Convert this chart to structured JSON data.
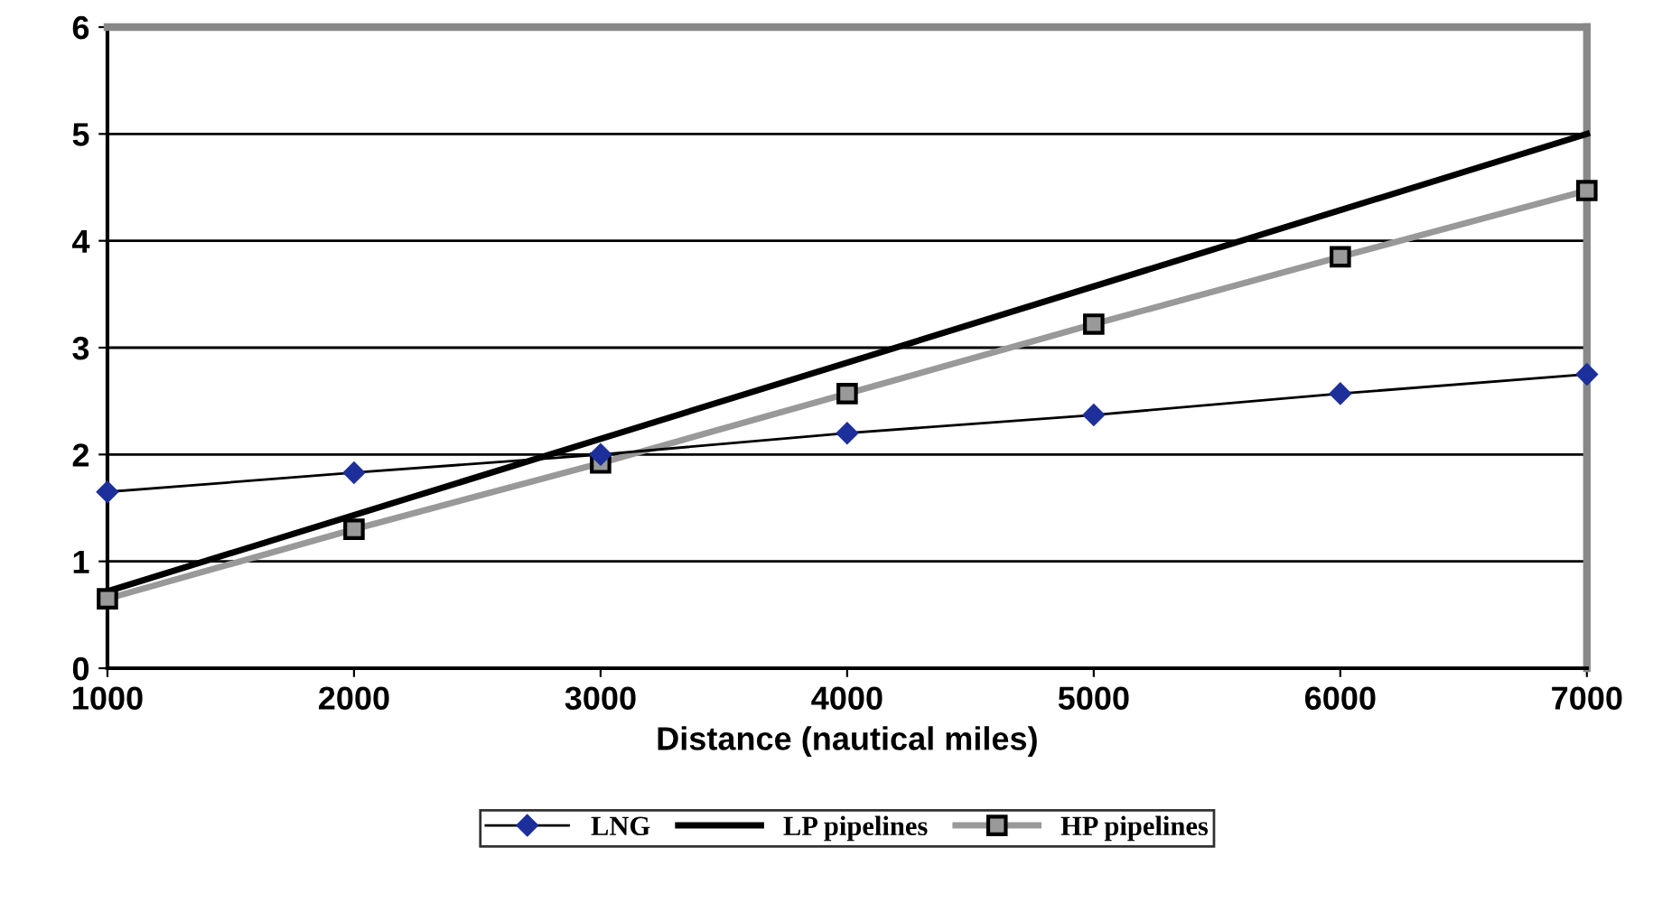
{
  "chart_data": {
    "type": "line",
    "xlabel": "Distance (nautical miles)",
    "xlim": [
      1000,
      7000
    ],
    "xticks": [
      1000,
      2000,
      3000,
      4000,
      5000,
      6000,
      7000
    ],
    "ylim": [
      0,
      6
    ],
    "yticks": [
      0,
      1,
      2,
      3,
      4,
      5,
      6
    ],
    "grid": "y",
    "legend": "bottom",
    "series": [
      {
        "name": "LNG",
        "color": "#1c2f9a",
        "marker": "diamond",
        "x": [
          1000,
          2000,
          3000,
          4000,
          5000,
          6000,
          7000
        ],
        "values": [
          1.65,
          1.83,
          2.0,
          2.2,
          2.37,
          2.57,
          2.75
        ]
      },
      {
        "name": "LP pipelines",
        "color": "#000000",
        "marker": "none",
        "x": [
          1000,
          7000
        ],
        "values": [
          0.72,
          5.0
        ]
      },
      {
        "name": "HP pipelines",
        "color": "#999999",
        "marker": "square",
        "x": [
          1000,
          2000,
          3000,
          4000,
          5000,
          6000,
          7000
        ],
        "values": [
          0.65,
          1.3,
          1.92,
          2.57,
          3.22,
          3.85,
          4.47
        ]
      }
    ]
  }
}
